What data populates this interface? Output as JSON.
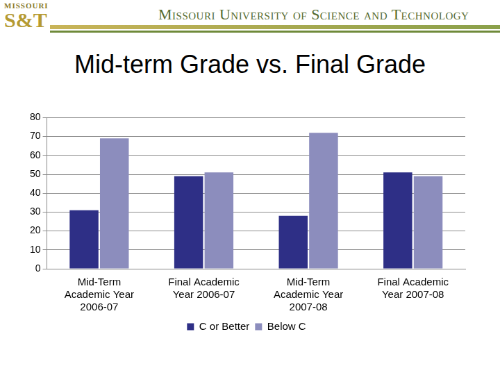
{
  "header": {
    "logo_top": "MISSOURI",
    "logo": "S&T",
    "name": "Missouri University of Science and Technology"
  },
  "chart_data": {
    "type": "bar",
    "title": "Mid-term Grade vs. Final Grade",
    "categories": [
      "Mid-Term Academic Year 2006-07",
      "Final Academic Year 2006-07",
      "Mid-Term Academic Year 2007-08",
      "Final Academic Year 2007-08"
    ],
    "series": [
      {
        "name": "C or Better",
        "color": "#2e2f86",
        "values": [
          31,
          49,
          28,
          51
        ]
      },
      {
        "name": "Below C",
        "color": "#8c8dbd",
        "values": [
          69,
          51,
          72,
          49
        ]
      }
    ],
    "ylim": [
      0,
      80
    ],
    "yticks": [
      0,
      10,
      20,
      30,
      40,
      50,
      60,
      70,
      80
    ],
    "grid": true,
    "legend": "bottom"
  }
}
